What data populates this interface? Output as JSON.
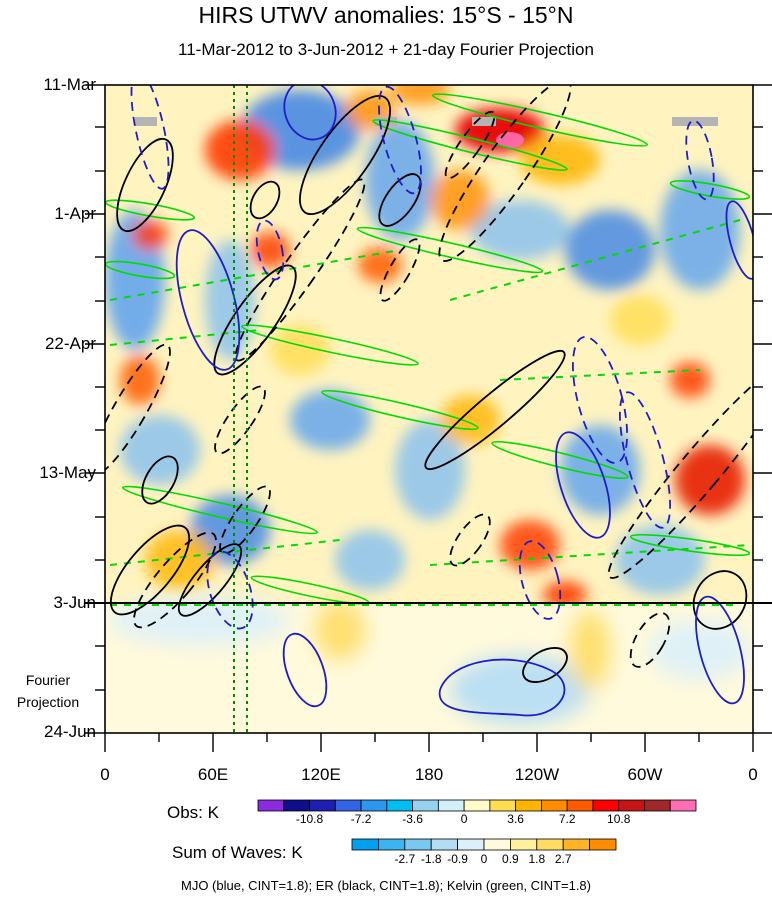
{
  "chart_data": {
    "type": "heatmap",
    "title": "HIRS UTWV anomalies: 15°S - 15°N",
    "subtitle": "11-Mar-2012 to 3-Jun-2012 + 21-day Fourier Projection",
    "x_ticks": [
      "0",
      "60E",
      "120E",
      "180",
      "120W",
      "60W",
      "0"
    ],
    "x_range_deg_east": [
      0,
      360
    ],
    "y_ticks": [
      "11-Mar",
      "1-Apr",
      "22-Apr",
      "13-May",
      "3-Jun",
      "24-Jun"
    ],
    "y_range": [
      "11-Mar-2012",
      "24-Jun-2012"
    ],
    "projection_start": "3-Jun",
    "projection_label": [
      "Fourier",
      "Projection"
    ],
    "mjo_index_lines_lon": [
      72,
      79
    ],
    "obs_colorbar": {
      "title": "Obs: K",
      "labels": [
        "-10.8",
        "-7.2",
        "-3.6",
        "0",
        "3.6",
        "7.2",
        "10.8"
      ],
      "colors": [
        "#8a2be2",
        "#0f0f8c",
        "#1e1eb4",
        "#3264e6",
        "#2d96f0",
        "#00bef0",
        "#96d2f0",
        "#d2f0fa",
        "#fffac8",
        "#ffdc50",
        "#ffb400",
        "#ff8c00",
        "#ff5a00",
        "#ff0000",
        "#c81414",
        "#a02828",
        "#ff6eb4"
      ]
    },
    "waves_colorbar": {
      "title": "Sum of Waves: K",
      "labels": [
        "-2.7",
        "-1.8",
        "-0.9",
        "0",
        "0.9",
        "1.8",
        "2.7"
      ],
      "colors": [
        "#00a0f0",
        "#3cb4f0",
        "#78c8f0",
        "#b4dcf5",
        "#dcf0fa",
        "#fffadc",
        "#fff0a0",
        "#ffdc64",
        "#ffb428",
        "#ff8c00"
      ]
    },
    "contours": [
      {
        "name": "MJO",
        "color": "#1e1ec8",
        "cint": 1.8
      },
      {
        "name": "ER",
        "color": "#000000",
        "cint": 1.8
      },
      {
        "name": "Kelvin",
        "color": "#00dc00",
        "cint": 1.8
      }
    ],
    "legend_note": "MJO (blue, CINT=1.8); ER (black, CINT=1.8); Kelvin (green, CINT=1.8)"
  }
}
